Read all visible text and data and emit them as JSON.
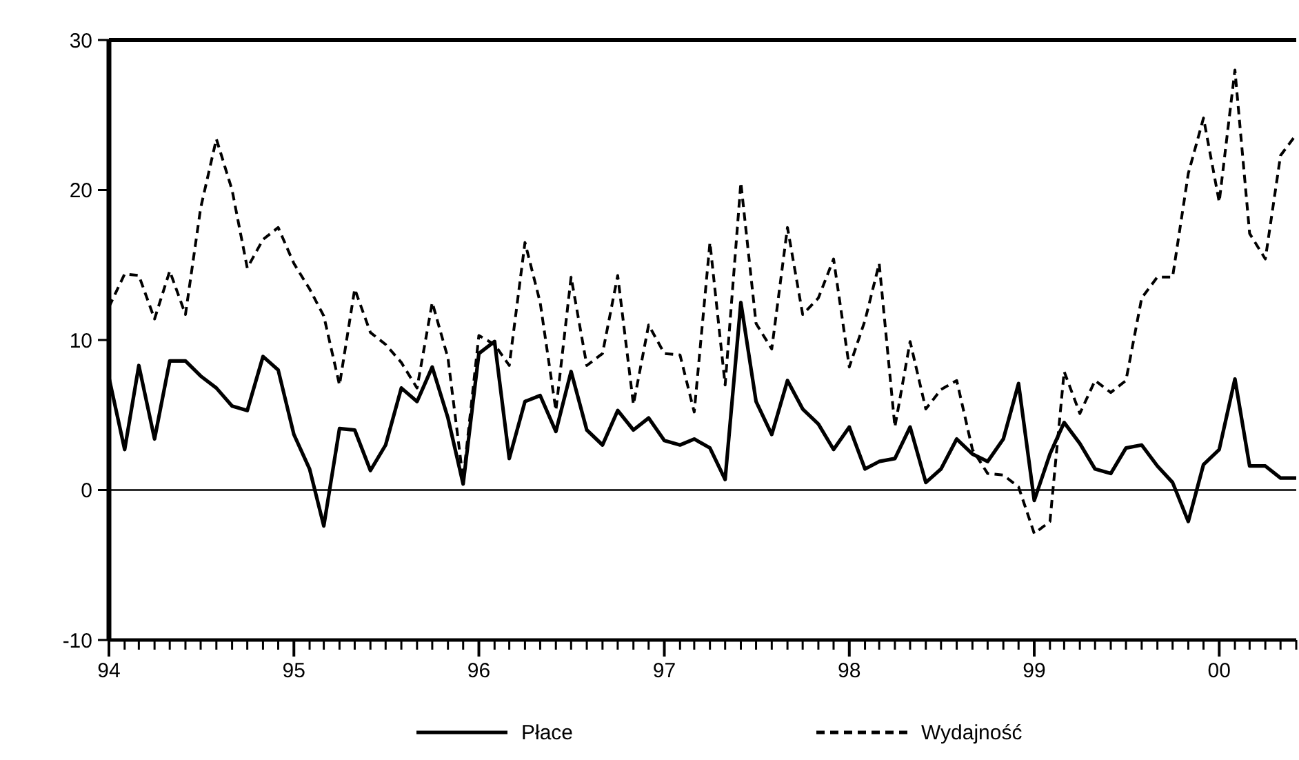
{
  "chart_data": {
    "type": "line",
    "x": [
      "1994-01",
      "1994-02",
      "1994-03",
      "1994-04",
      "1994-05",
      "1994-06",
      "1994-07",
      "1994-08",
      "1994-09",
      "1994-10",
      "1994-11",
      "1994-12",
      "1995-01",
      "1995-02",
      "1995-03",
      "1995-04",
      "1995-05",
      "1995-06",
      "1995-07",
      "1995-08",
      "1995-09",
      "1995-10",
      "1995-11",
      "1995-12",
      "1996-01",
      "1996-02",
      "1996-03",
      "1996-04",
      "1996-05",
      "1996-06",
      "1996-07",
      "1996-08",
      "1996-09",
      "1996-10",
      "1996-11",
      "1996-12",
      "1997-01",
      "1997-02",
      "1997-03",
      "1997-04",
      "1997-05",
      "1997-06",
      "1997-07",
      "1997-08",
      "1997-09",
      "1997-10",
      "1997-11",
      "1997-12",
      "1998-01",
      "1998-02",
      "1998-03",
      "1998-04",
      "1998-05",
      "1998-06",
      "1998-07",
      "1998-08",
      "1998-09",
      "1998-10",
      "1998-11",
      "1998-12",
      "1999-01",
      "1999-02",
      "1999-03",
      "1999-04",
      "1999-05",
      "1999-06",
      "1999-07",
      "1999-08",
      "1999-09",
      "1999-10",
      "1999-11",
      "1999-12",
      "2000-01",
      "2000-02",
      "2000-03",
      "2000-04",
      "2000-05",
      "2000-06"
    ],
    "series": [
      {
        "name": "Płace",
        "color": "#000000",
        "line_style": "solid",
        "values": [
          7.5,
          2.7,
          8.3,
          3.4,
          8.6,
          8.6,
          7.6,
          6.8,
          5.6,
          5.3,
          8.9,
          8.0,
          3.7,
          1.4,
          -2.4,
          4.1,
          4.0,
          1.3,
          3.0,
          6.8,
          5.9,
          8.2,
          4.8,
          0.4,
          9.1,
          9.9,
          2.1,
          5.9,
          6.3,
          3.9,
          7.9,
          4.0,
          3.0,
          5.3,
          4.0,
          4.8,
          3.3,
          3.0,
          3.4,
          2.8,
          0.7,
          12.5,
          5.9,
          3.7,
          7.3,
          5.4,
          4.4,
          2.7,
          4.2,
          1.4,
          1.9,
          2.1,
          4.2,
          0.5,
          1.4,
          3.4,
          2.4,
          1.9,
          3.4,
          7.1,
          -0.7,
          2.4,
          4.5,
          3.1,
          1.4,
          1.1,
          2.8,
          3.0,
          1.6,
          0.5,
          -2.1,
          1.7,
          2.7,
          7.4,
          1.6,
          1.6,
          0.8,
          0.8
        ]
      },
      {
        "name": "Wydajność",
        "color": "#000000",
        "line_style": "dashed",
        "values": [
          12.2,
          14.4,
          14.3,
          11.4,
          14.6,
          11.7,
          18.8,
          23.4,
          20.0,
          14.8,
          16.7,
          17.5,
          15.1,
          13.4,
          11.6,
          7.0,
          13.4,
          10.5,
          9.7,
          8.5,
          6.8,
          12.5,
          8.8,
          0.7,
          10.3,
          9.7,
          8.3,
          16.5,
          12.5,
          5.3,
          14.2,
          8.3,
          9.1,
          14.3,
          5.7,
          11.0,
          9.1,
          9.0,
          5.2,
          16.5,
          7.0,
          20.5,
          11.1,
          9.4,
          17.5,
          11.7,
          12.8,
          15.4,
          8.2,
          11.3,
          15.1,
          4.2,
          9.9,
          5.4,
          6.7,
          7.3,
          2.7,
          1.1,
          1.0,
          0.2,
          -2.9,
          -2.1,
          7.9,
          5.1,
          7.3,
          6.5,
          7.3,
          12.8,
          14.2,
          14.2,
          21.1,
          24.8,
          19.2,
          28.0,
          17.1,
          15.4,
          22.3,
          23.7
        ]
      }
    ],
    "xlim": [
      "1994-01",
      "2000-06"
    ],
    "xticks": [
      {
        "value": "1994-01",
        "label": "94"
      },
      {
        "value": "1994-02",
        "label": null
      },
      {
        "value": "1994-03",
        "label": null
      },
      {
        "value": "1994-04",
        "label": null
      },
      {
        "value": "1994-05",
        "label": null
      },
      {
        "value": "1994-06",
        "label": null
      },
      {
        "value": "1994-07",
        "label": null
      },
      {
        "value": "1994-08",
        "label": null
      },
      {
        "value": "1994-09",
        "label": null
      },
      {
        "value": "1994-10",
        "label": null
      },
      {
        "value": "1994-11",
        "label": null
      },
      {
        "value": "1994-12",
        "label": null
      },
      {
        "value": "1995-01",
        "label": "95"
      },
      {
        "value": "1995-02",
        "label": null
      },
      {
        "value": "1995-03",
        "label": null
      },
      {
        "value": "1995-04",
        "label": null
      },
      {
        "value": "1995-05",
        "label": null
      },
      {
        "value": "1995-06",
        "label": null
      },
      {
        "value": "1995-07",
        "label": null
      },
      {
        "value": "1995-08",
        "label": null
      },
      {
        "value": "1995-09",
        "label": null
      },
      {
        "value": "1995-10",
        "label": null
      },
      {
        "value": "1995-11",
        "label": null
      },
      {
        "value": "1995-12",
        "label": null
      },
      {
        "value": "1996-01",
        "label": "96"
      },
      {
        "value": "1996-02",
        "label": null
      },
      {
        "value": "1996-03",
        "label": null
      },
      {
        "value": "1996-04",
        "label": null
      },
      {
        "value": "1996-05",
        "label": null
      },
      {
        "value": "1996-06",
        "label": null
      },
      {
        "value": "1996-07",
        "label": null
      },
      {
        "value": "1996-08",
        "label": null
      },
      {
        "value": "1996-09",
        "label": null
      },
      {
        "value": "1996-10",
        "label": null
      },
      {
        "value": "1996-11",
        "label": null
      },
      {
        "value": "1996-12",
        "label": null
      },
      {
        "value": "1997-01",
        "label": "97"
      },
      {
        "value": "1997-02",
        "label": null
      },
      {
        "value": "1997-03",
        "label": null
      },
      {
        "value": "1997-04",
        "label": null
      },
      {
        "value": "1997-05",
        "label": null
      },
      {
        "value": "1997-06",
        "label": null
      },
      {
        "value": "1997-07",
        "label": null
      },
      {
        "value": "1997-08",
        "label": null
      },
      {
        "value": "1997-09",
        "label": null
      },
      {
        "value": "1997-10",
        "label": null
      },
      {
        "value": "1997-11",
        "label": null
      },
      {
        "value": "1997-12",
        "label": null
      },
      {
        "value": "1998-01",
        "label": "98"
      },
      {
        "value": "1998-02",
        "label": null
      },
      {
        "value": "1998-03",
        "label": null
      },
      {
        "value": "1998-04",
        "label": null
      },
      {
        "value": "1998-05",
        "label": null
      },
      {
        "value": "1998-06",
        "label": null
      },
      {
        "value": "1998-07",
        "label": null
      },
      {
        "value": "1998-08",
        "label": null
      },
      {
        "value": "1998-09",
        "label": null
      },
      {
        "value": "1998-10",
        "label": null
      },
      {
        "value": "1998-11",
        "label": null
      },
      {
        "value": "1998-12",
        "label": null
      },
      {
        "value": "1999-01",
        "label": "99"
      },
      {
        "value": "1999-02",
        "label": null
      },
      {
        "value": "1999-03",
        "label": null
      },
      {
        "value": "1999-04",
        "label": null
      },
      {
        "value": "1999-05",
        "label": null
      },
      {
        "value": "1999-06",
        "label": null
      },
      {
        "value": "1999-07",
        "label": null
      },
      {
        "value": "1999-08",
        "label": null
      },
      {
        "value": "1999-09",
        "label": null
      },
      {
        "value": "1999-10",
        "label": null
      },
      {
        "value": "1999-11",
        "label": null
      },
      {
        "value": "1999-12",
        "label": null
      },
      {
        "value": "2000-01",
        "label": "00"
      },
      {
        "value": "2000-02",
        "label": null
      },
      {
        "value": "2000-03",
        "label": null
      },
      {
        "value": "2000-04",
        "label": null
      },
      {
        "value": "2000-05",
        "label": null
      },
      {
        "value": "2000-06",
        "label": null
      }
    ],
    "ylim": [
      -10,
      30
    ],
    "yticks": [
      -10,
      0,
      10,
      20,
      30
    ],
    "ref_lines": [
      {
        "axis": "y",
        "value": 0,
        "color": "#000000"
      }
    ],
    "grid": false,
    "legend": "bottom",
    "marker": "none"
  }
}
